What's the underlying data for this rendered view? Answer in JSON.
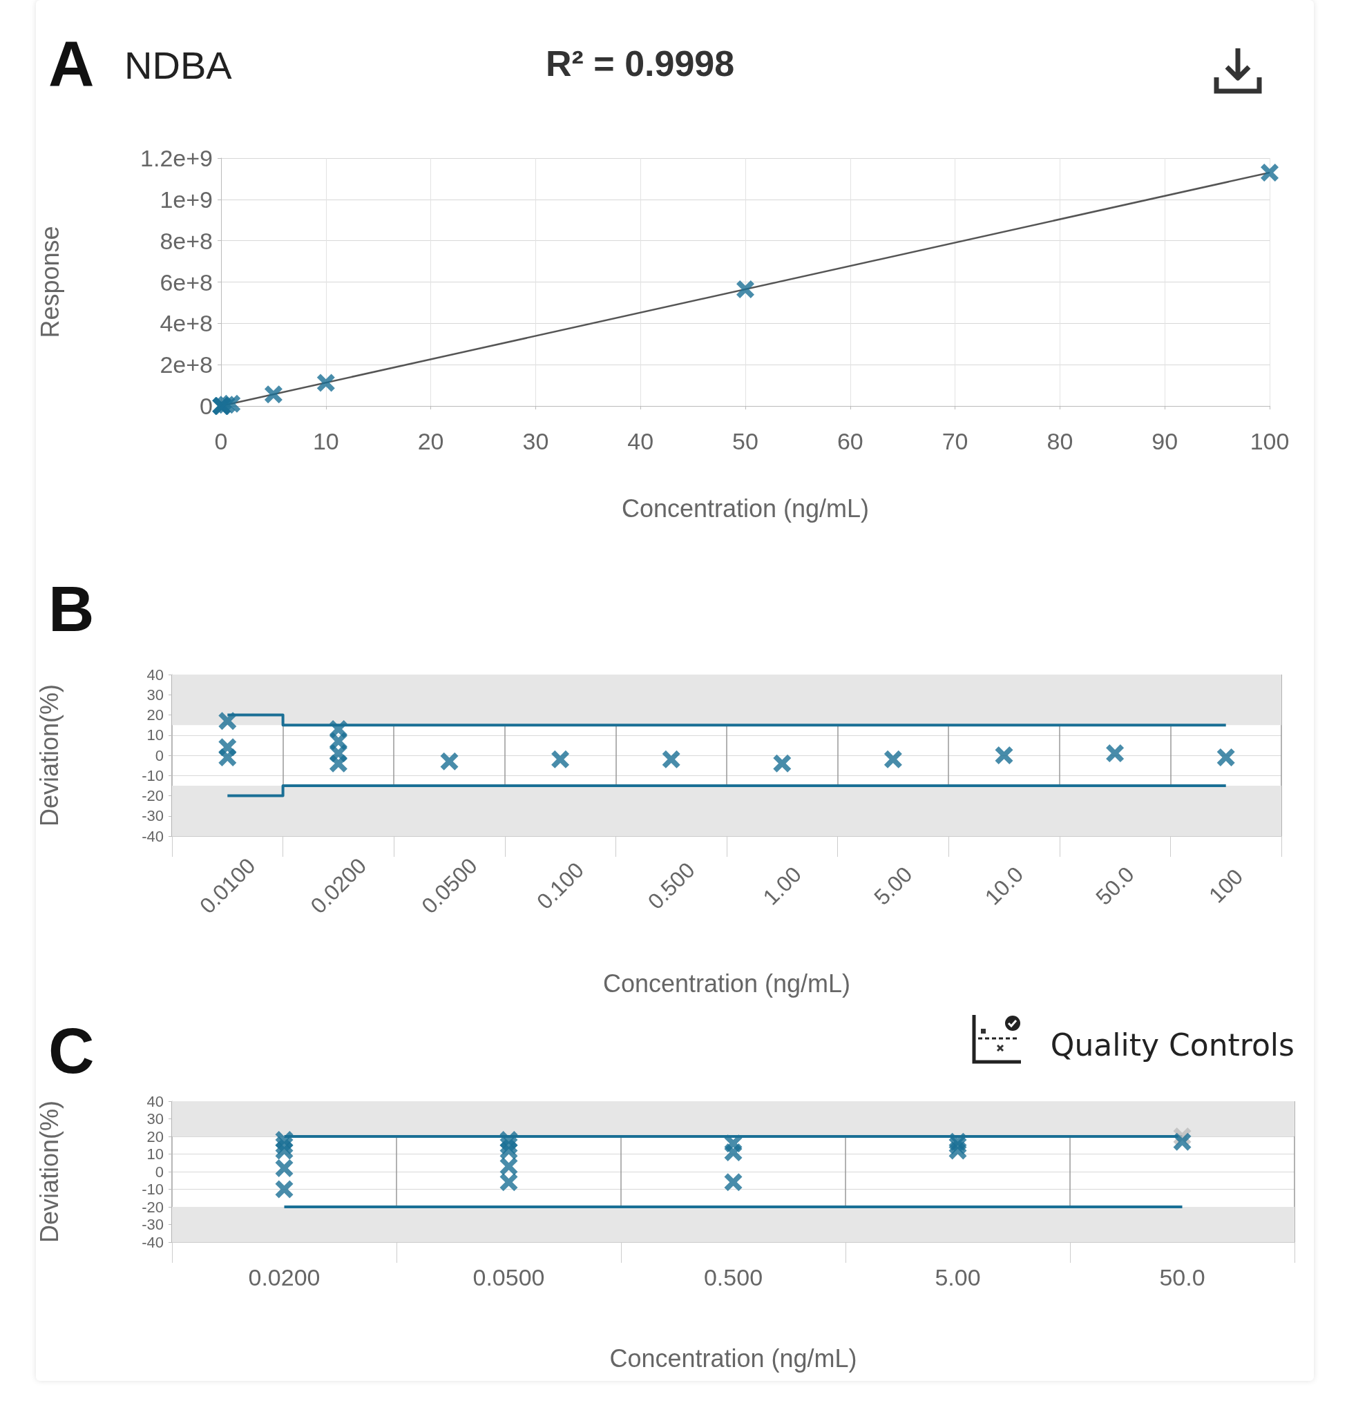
{
  "chart_data": [
    {
      "type": "scatter",
      "title": "NDBA",
      "subtitle": "R² = 0.9998",
      "annotations": [
        "A"
      ],
      "xlabel": "Concentration (ng/mL)",
      "ylabel": "Response",
      "xlim": [
        0,
        100
      ],
      "xticks": [
        0,
        10,
        20,
        30,
        40,
        50,
        60,
        70,
        80,
        90,
        100
      ],
      "ylim": [
        0,
        1200000000
      ],
      "yticks": [
        0,
        {
          "value": 200000000,
          "label": "2e+8"
        },
        {
          "value": 400000000,
          "label": "4e+8"
        },
        {
          "value": 600000000,
          "label": "6e+8"
        },
        {
          "value": 800000000,
          "label": "8e+8"
        },
        {
          "value": 1000000000,
          "label": "1e+9"
        },
        {
          "value": 1200000000,
          "label": "1.2e+9"
        }
      ],
      "grid": true,
      "marker": "cross",
      "series": [
        {
          "color": "#1a6f95",
          "x": [
            0.01,
            0.02,
            0.05,
            0.1,
            0.5,
            1,
            5,
            10,
            50,
            100
          ],
          "values": [
            0,
            0,
            0,
            0,
            6000000,
            11000000,
            56000000,
            112000000,
            565000000,
            1130000000
          ]
        },
        {
          "type": "line",
          "marker": "none",
          "color": "#555555",
          "x": [
            0,
            100
          ],
          "values": [
            0,
            1130000000
          ]
        }
      ]
    },
    {
      "type": "scatter",
      "annotations": [
        "B"
      ],
      "xlabel": "Concentration (ng/mL)",
      "ylabel": "Deviation(%)",
      "categories": [
        "0.0100",
        "0.0200",
        "0.0500",
        "0.100",
        "0.500",
        "1.00",
        "5.00",
        "10.0",
        "50.0",
        "100"
      ],
      "ylim": [
        -40,
        40
      ],
      "yticks": [
        -40,
        -30,
        -20,
        -10,
        0,
        10,
        20,
        30,
        40
      ],
      "grid": true,
      "marker": "cross",
      "bands": [
        {
          "axis": "y",
          "from": 15,
          "to": 40,
          "color": "#e6e6e6"
        },
        {
          "axis": "y",
          "from": -40,
          "to": -15,
          "color": "#e6e6e6"
        }
      ],
      "series": [
        {
          "color": "#1a6f95",
          "x": [
            "0.0100",
            "0.0100",
            "0.0100",
            "0.0200",
            "0.0200",
            "0.0200",
            "0.0200",
            "0.0500",
            "0.100",
            "0.500",
            "1.00",
            "5.00",
            "10.0",
            "50.0",
            "100"
          ],
          "values": [
            17,
            4,
            -1,
            13,
            7,
            1,
            -4,
            -3,
            -2,
            -2,
            -4,
            -2,
            0,
            1,
            -1
          ]
        },
        {
          "type": "step",
          "marker": "none",
          "color": "#1a6f95",
          "x": [
            "0.0100",
            "0.0200",
            "0.0500",
            "0.100",
            "0.500",
            "1.00",
            "5.00",
            "10.0",
            "50.0",
            "100"
          ],
          "values": [
            20,
            15,
            15,
            15,
            15,
            15,
            15,
            15,
            15,
            15
          ]
        },
        {
          "type": "step",
          "marker": "none",
          "color": "#1a6f95",
          "x": [
            "0.0100",
            "0.0200",
            "0.0500",
            "0.100",
            "0.500",
            "1.00",
            "5.00",
            "10.0",
            "50.0",
            "100"
          ],
          "values": [
            -20,
            -15,
            -15,
            -15,
            -15,
            -15,
            -15,
            -15,
            -15,
            -15
          ]
        }
      ]
    },
    {
      "type": "scatter",
      "annotations": [
        "C",
        "Quality Controls"
      ],
      "xlabel": "Concentration (ng/mL)",
      "ylabel": "Deviation(%)",
      "categories": [
        "0.0200",
        "0.0500",
        "0.500",
        "5.00",
        "50.0"
      ],
      "ylim": [
        -40,
        40
      ],
      "yticks": [
        -40,
        -30,
        -20,
        -10,
        0,
        10,
        20,
        30,
        40
      ],
      "grid": true,
      "marker": "cross",
      "bands": [
        {
          "axis": "y",
          "from": 20,
          "to": 40,
          "color": "#e6e6e6"
        },
        {
          "axis": "y",
          "from": -40,
          "to": -20,
          "color": "#e6e6e6"
        }
      ],
      "series": [
        {
          "type": "step",
          "marker": "none",
          "color": "#1a6f95",
          "x": [
            "0.0200",
            "0.0500",
            "0.500",
            "5.00",
            "50.0"
          ],
          "values": [
            20,
            20,
            20,
            20,
            20
          ]
        },
        {
          "type": "step",
          "marker": "none",
          "color": "#1a6f95",
          "x": [
            "0.0200",
            "0.0500",
            "0.500",
            "5.00",
            "50.0"
          ],
          "values": [
            -20,
            -20,
            -20,
            -20,
            -20
          ]
        },
        {
          "color": "#bdbdbd",
          "x": [
            "50.0"
          ],
          "values": [
            20
          ]
        },
        {
          "color": "#1a6f95",
          "x": [
            "0.0200",
            "0.0200",
            "0.0200",
            "0.0200",
            "0.0200",
            "0.0500",
            "0.0500",
            "0.0500",
            "0.0500",
            "0.0500",
            "0.500",
            "0.500",
            "0.500",
            "5.00",
            "5.00",
            "5.00",
            "50.0"
          ],
          "values": [
            18,
            15,
            12,
            2,
            -10,
            18,
            15,
            12,
            3,
            -6,
            16,
            11,
            -6,
            17,
            15,
            12,
            17
          ]
        }
      ]
    }
  ]
}
